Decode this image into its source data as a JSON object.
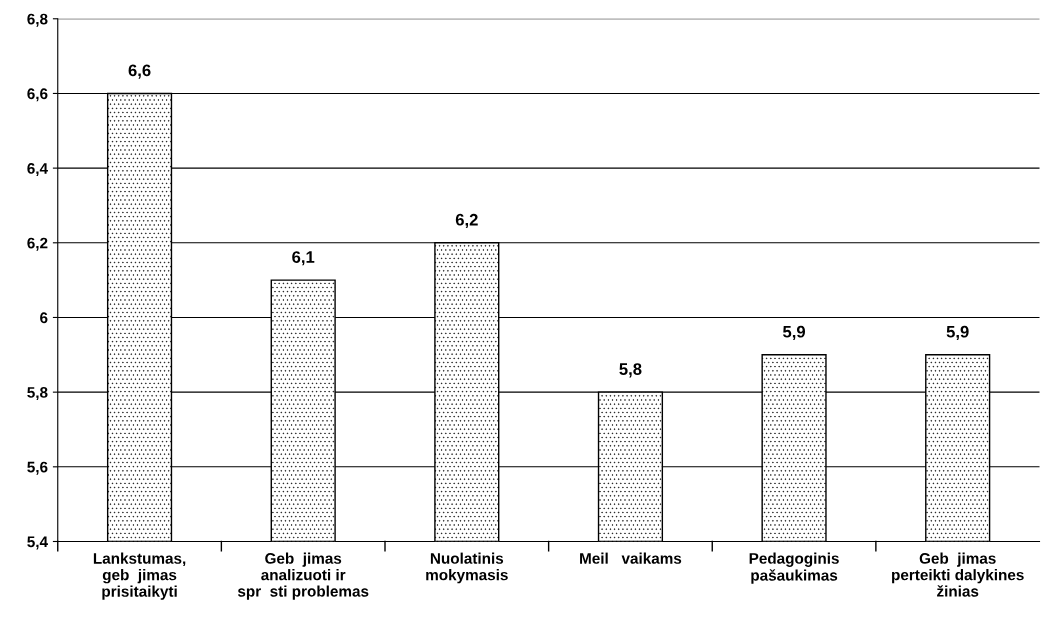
{
  "chart_data": {
    "type": "bar",
    "categories": [
      "Lankstumas,\ngeb  jimas\nprisitaikyti",
      "Geb  jimas\nanalizuoti ir\nspr  sti problemas",
      "Nuolatinis\nmokymasis",
      "Meil   vaikams",
      "Pedagoginis\npašaukimas",
      "Geb  jimas\nperteikti dalykines\nžinias"
    ],
    "values": [
      6.6,
      6.1,
      6.2,
      5.8,
      5.9,
      5.9
    ],
    "value_labels": [
      "6,6",
      "6,1",
      "6,2",
      "5,8",
      "5,9",
      "5,9"
    ],
    "color": "#000000",
    "ylim": [
      5.4,
      6.8
    ],
    "yticks": [
      {
        "value": 5.4,
        "label": "5,4"
      },
      {
        "value": 5.6,
        "label": "5,6"
      },
      {
        "value": 5.8,
        "label": "5,8"
      },
      {
        "value": 6,
        "label": "6"
      },
      {
        "value": 6.2,
        "label": "6,2"
      },
      {
        "value": 6.4,
        "label": "6,4"
      },
      {
        "value": 6.6,
        "label": "6,6"
      },
      {
        "value": 6.8,
        "label": "6,8"
      }
    ],
    "grid": "y"
  }
}
